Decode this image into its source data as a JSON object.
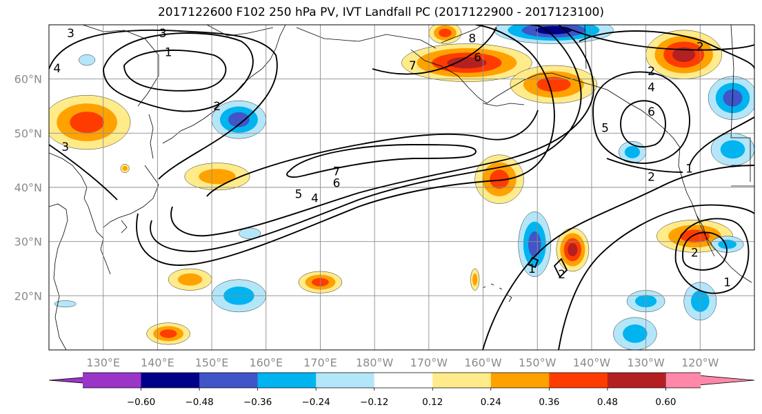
{
  "title": "2017122600 F102 250 hPa PV, IVT Landfall PC (2017122900 - 2017123100)",
  "map": {
    "lat_labels": [
      "60°N",
      "50°N",
      "40°N",
      "30°N",
      "20°N"
    ],
    "lat_values": [
      60,
      50,
      40,
      30,
      20
    ],
    "lon_labels": [
      "130°E",
      "140°E",
      "150°E",
      "160°E",
      "170°E",
      "180°W",
      "170°W",
      "160°W",
      "150°W",
      "140°W",
      "130°W",
      "120°W"
    ],
    "lon_values": [
      130,
      140,
      150,
      160,
      170,
      180,
      190,
      200,
      210,
      220,
      230,
      240
    ],
    "extent": {
      "lon_min": 120,
      "lon_max": 250,
      "lat_min": 10,
      "lat_max": 70
    },
    "contour_labels": [
      {
        "text": "3",
        "lon": 124,
        "lat": 68.5
      },
      {
        "text": "3",
        "lon": 141,
        "lat": 68.5
      },
      {
        "text": "1",
        "lon": 142,
        "lat": 65
      },
      {
        "text": "4",
        "lon": 121.5,
        "lat": 62
      },
      {
        "text": "3",
        "lon": 123,
        "lat": 47.5
      },
      {
        "text": "2",
        "lon": 151,
        "lat": 55
      },
      {
        "text": "8",
        "lon": 198,
        "lat": 67.5
      },
      {
        "text": "6",
        "lon": 199,
        "lat": 64
      },
      {
        "text": "7",
        "lon": 187,
        "lat": 62.5
      },
      {
        "text": "7",
        "lon": 173,
        "lat": 43
      },
      {
        "text": "6",
        "lon": 173,
        "lat": 40.8
      },
      {
        "text": "5",
        "lon": 166,
        "lat": 38.8
      },
      {
        "text": "4",
        "lon": 169,
        "lat": 38
      },
      {
        "text": "5",
        "lon": 222.5,
        "lat": 51
      },
      {
        "text": "6",
        "lon": 231,
        "lat": 54
      },
      {
        "text": "2",
        "lon": 231,
        "lat": 61.5
      },
      {
        "text": "2",
        "lon": 240,
        "lat": 66
      },
      {
        "text": "4",
        "lon": 231,
        "lat": 58.5
      },
      {
        "text": "2",
        "lon": 231,
        "lat": 42
      },
      {
        "text": "1",
        "lon": 238,
        "lat": 43.5
      },
      {
        "text": "2",
        "lon": 239,
        "lat": 28
      },
      {
        "text": "1",
        "lon": 245,
        "lat": 22.5
      },
      {
        "text": "1",
        "lon": 209,
        "lat": 25
      },
      {
        "text": "2",
        "lon": 214.5,
        "lat": 24
      }
    ]
  },
  "colorbar": {
    "colors": [
      "#9a35c8",
      "#000088",
      "#3f55c8",
      "#00b4f0",
      "#b4e6fa",
      "#ffffff",
      "#ffeb8a",
      "#ffa200",
      "#ff3c00",
      "#b42021",
      "#ff88aa"
    ],
    "tick_labels": [
      "−0.60",
      "−0.48",
      "−0.36",
      "−0.24",
      "−0.12",
      "0.12",
      "0.24",
      "0.36",
      "0.48",
      "0.60"
    ],
    "levels": [
      -0.6,
      -0.48,
      -0.36,
      -0.24,
      -0.12,
      0.12,
      0.24,
      0.36,
      0.48,
      0.6
    ]
  },
  "anomalies": [
    {
      "lon": 127,
      "lat": 52,
      "rx": 8,
      "ry": 5,
      "value": 0.45
    },
    {
      "lon": 151,
      "lat": 42,
      "rx": 6,
      "ry": 2.5,
      "value": 0.3
    },
    {
      "lon": 155,
      "lat": 52.5,
      "rx": 5,
      "ry": 3.5,
      "value": -0.4
    },
    {
      "lon": 157,
      "lat": 31.5,
      "rx": 2,
      "ry": 1,
      "value": -0.2
    },
    {
      "lon": 146,
      "lat": 23,
      "rx": 4,
      "ry": 2,
      "value": 0.24
    },
    {
      "lon": 155,
      "lat": 20,
      "rx": 5,
      "ry": 3,
      "value": -0.3
    },
    {
      "lon": 170,
      "lat": 22.5,
      "rx": 4,
      "ry": 2,
      "value": 0.36
    },
    {
      "lon": 142,
      "lat": 13,
      "rx": 4,
      "ry": 2,
      "value": 0.36
    },
    {
      "lon": 197,
      "lat": 63,
      "rx": 12,
      "ry": 3.5,
      "value": 0.5
    },
    {
      "lon": 193,
      "lat": 68.5,
      "rx": 3,
      "ry": 2,
      "value": 0.45
    },
    {
      "lon": 213,
      "lat": 59,
      "rx": 8,
      "ry": 3.5,
      "value": 0.45
    },
    {
      "lon": 213,
      "lat": 69,
      "rx": 11,
      "ry": 2.5,
      "value": -0.5
    },
    {
      "lon": 203,
      "lat": 41.5,
      "rx": 4.5,
      "ry": 4.5,
      "value": 0.36
    },
    {
      "lon": 209.5,
      "lat": 29.5,
      "rx": 3,
      "ry": 6,
      "value": -0.45
    },
    {
      "lon": 216.5,
      "lat": 28.5,
      "rx": 3,
      "ry": 4,
      "value": 0.5
    },
    {
      "lon": 198.5,
      "lat": 23,
      "rx": 0.8,
      "ry": 2,
      "value": 0.3
    },
    {
      "lon": 237,
      "lat": 64.5,
      "rx": 7,
      "ry": 4.5,
      "value": 0.55
    },
    {
      "lon": 246,
      "lat": 56.5,
      "rx": 4.5,
      "ry": 4,
      "value": -0.45
    },
    {
      "lon": 246,
      "lat": 47,
      "rx": 4,
      "ry": 3,
      "value": -0.35
    },
    {
      "lon": 227.5,
      "lat": 46.5,
      "rx": 2.5,
      "ry": 2,
      "value": -0.25
    },
    {
      "lon": 239,
      "lat": 31,
      "rx": 7,
      "ry": 3,
      "value": 0.45
    },
    {
      "lon": 245,
      "lat": 29.5,
      "rx": 3,
      "ry": 1.5,
      "value": -0.25
    },
    {
      "lon": 240,
      "lat": 19,
      "rx": 3,
      "ry": 3.5,
      "value": -0.3
    },
    {
      "lon": 230,
      "lat": 19,
      "rx": 3.5,
      "ry": 2,
      "value": -0.25
    },
    {
      "lon": 228,
      "lat": 13,
      "rx": 4,
      "ry": 3,
      "value": -0.3
    },
    {
      "lon": 123,
      "lat": 18.5,
      "rx": 2,
      "ry": 0.6,
      "value": -0.2
    },
    {
      "lon": 127,
      "lat": 63.5,
      "rx": 1.5,
      "ry": 1,
      "value": -0.2
    },
    {
      "lon": 134,
      "lat": 43.5,
      "rx": 0.8,
      "ry": 0.8,
      "value": 0.3
    }
  ]
}
